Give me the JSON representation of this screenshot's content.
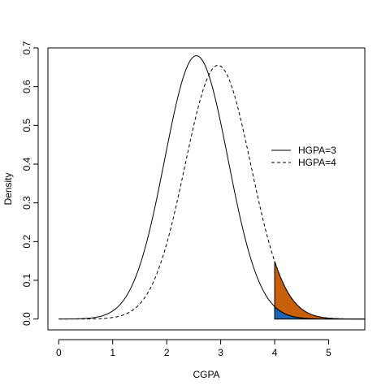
{
  "chart_data": {
    "type": "line",
    "title": "",
    "xlabel": "CGPA",
    "ylabel": "Density",
    "xlim": [
      -0.2,
      5.67
    ],
    "ylim": [
      -0.028,
      0.7
    ],
    "x_ticks": [
      "0",
      "1",
      "2",
      "3",
      "4",
      "5"
    ],
    "y_ticks": [
      "0.0",
      "0.1",
      "0.2",
      "0.3",
      "0.4",
      "0.5",
      "0.6",
      "0.7"
    ],
    "grid": false,
    "legend_position": "right",
    "series": [
      {
        "name": "HGPA=3",
        "linestyle": "solid",
        "color": "#000000",
        "mean": 2.55,
        "sd": 0.587,
        "peak": 0.68,
        "x_range": [
          0,
          5.67
        ]
      },
      {
        "name": "HGPA=4",
        "linestyle": "dashed",
        "color": "#000000",
        "mean": 2.95,
        "sd": 0.61,
        "peak": 0.655,
        "x_range": [
          0,
          5.67
        ]
      }
    ],
    "shaded_regions": [
      {
        "series": "HGPA=4",
        "from": 4,
        "to": 5.67,
        "color": "#c8600a"
      },
      {
        "series": "HGPA=3",
        "from": 4,
        "to": 5.67,
        "color": "#1f63b4"
      }
    ]
  }
}
